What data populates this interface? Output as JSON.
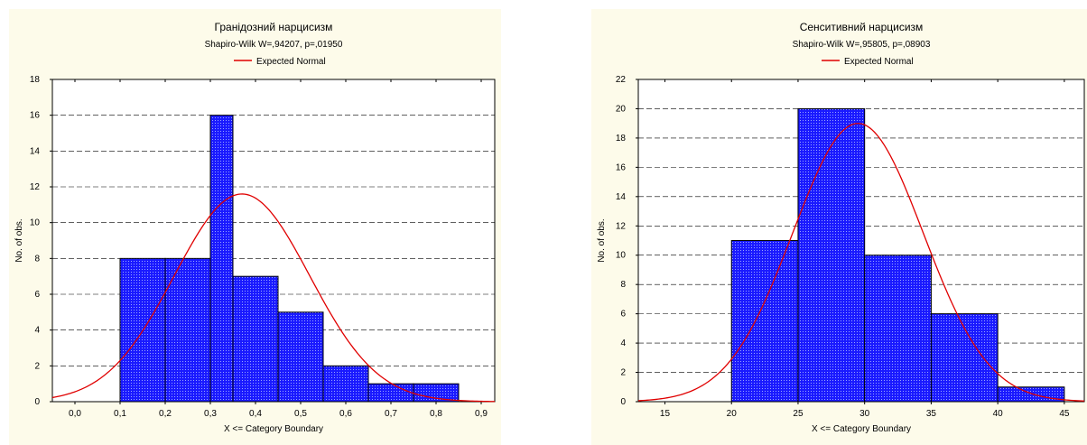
{
  "chart_data": [
    {
      "type": "bar",
      "title": "Гранідозний нарцисизм",
      "subtitle": "Shapiro-Wilk W=,94207, p=,01950",
      "legend": [
        "Expected Normal"
      ],
      "xlabel": "X <= Category Boundary",
      "ylabel": "No. of obs.",
      "xlim": [
        -0.05,
        0.93
      ],
      "ylim": [
        0,
        18
      ],
      "x_ticks": [
        "0,0",
        "0,1",
        "0,2",
        "0,3",
        "0,4",
        "0,5",
        "0,6",
        "0,7",
        "0,8",
        "0,9"
      ],
      "y_ticks": [
        "0",
        "2",
        "4",
        "6",
        "8",
        "10",
        "12",
        "14",
        "16",
        "18"
      ],
      "bins": [
        {
          "start": 0.1,
          "end": 0.2,
          "count": 8
        },
        {
          "start": 0.2,
          "end": 0.3,
          "count": 8
        },
        {
          "start": 0.3,
          "end": 0.35,
          "count": 16
        },
        {
          "start": 0.35,
          "end": 0.45,
          "count": 7
        },
        {
          "start": 0.45,
          "end": 0.55,
          "count": 5
        },
        {
          "start": 0.55,
          "end": 0.65,
          "count": 2
        },
        {
          "start": 0.65,
          "end": 0.75,
          "count": 1
        },
        {
          "start": 0.75,
          "end": 0.85,
          "count": 1
        }
      ],
      "normal_curve": {
        "mean": 0.37,
        "sd": 0.15,
        "peak": 11.6
      },
      "grid": true,
      "colors": {
        "bar": "#1a1aff",
        "curve": "#e00000"
      }
    },
    {
      "type": "bar",
      "title": "Сенситивний нарцисизм",
      "subtitle": "Shapiro-Wilk W=,95805, p=,08903",
      "legend": [
        "Expected Normal"
      ],
      "xlabel": "X <= Category Boundary",
      "ylabel": "No. of obs.",
      "xlim": [
        13,
        46.5
      ],
      "ylim": [
        0,
        22
      ],
      "x_ticks": [
        "15",
        "20",
        "25",
        "30",
        "35",
        "40",
        "45"
      ],
      "y_ticks": [
        "0",
        "2",
        "4",
        "6",
        "8",
        "10",
        "12",
        "14",
        "16",
        "18",
        "20",
        "22"
      ],
      "bins": [
        {
          "start": 20,
          "end": 25,
          "count": 11
        },
        {
          "start": 25,
          "end": 30,
          "count": 20
        },
        {
          "start": 30,
          "end": 35,
          "count": 10
        },
        {
          "start": 35,
          "end": 40,
          "count": 6
        },
        {
          "start": 40,
          "end": 45,
          "count": 1
        }
      ],
      "normal_curve": {
        "mean": 29.5,
        "sd": 4.9,
        "peak": 19.0
      },
      "grid": true,
      "colors": {
        "bar": "#1a1aff",
        "curve": "#e00000"
      }
    }
  ]
}
